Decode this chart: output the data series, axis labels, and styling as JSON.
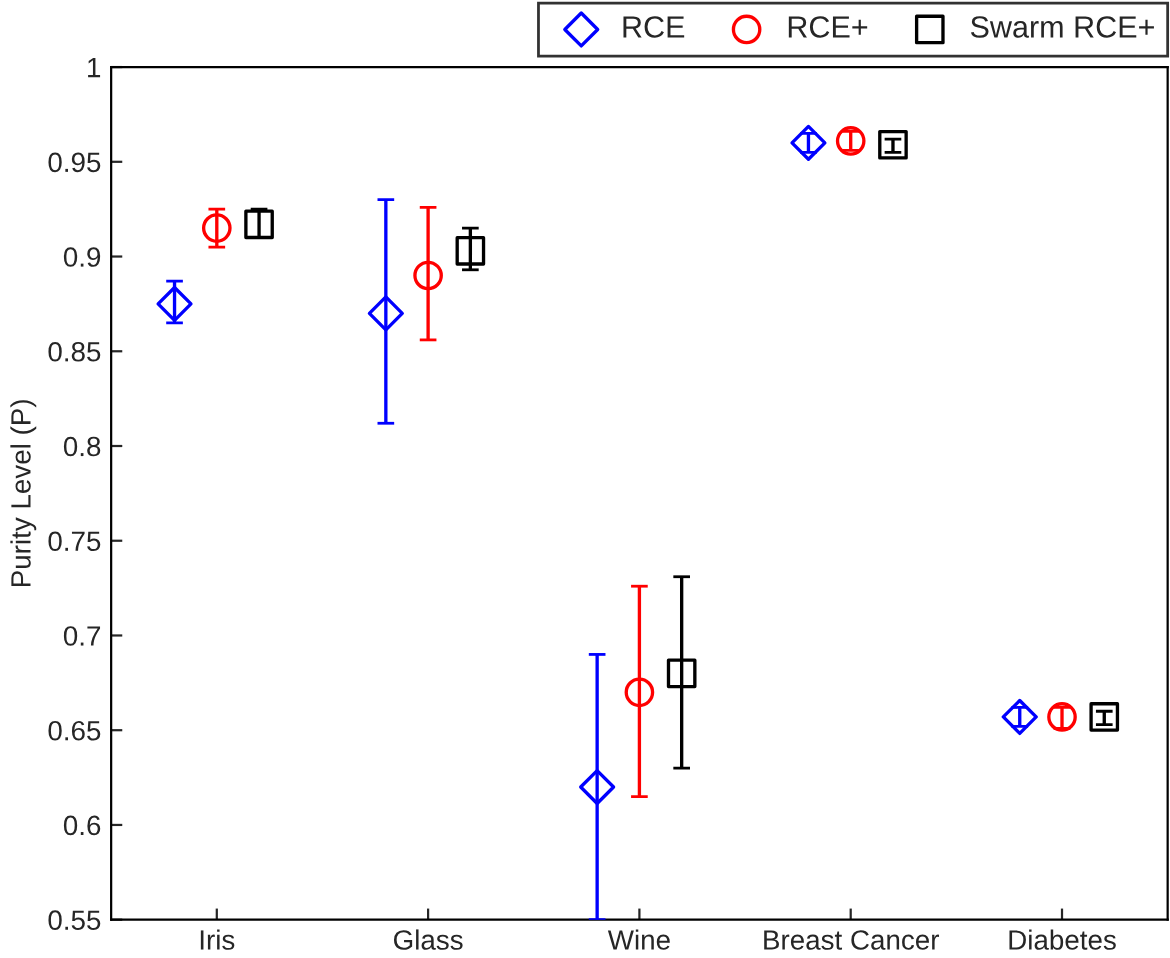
{
  "chart_data": {
    "type": "scatter",
    "ylabel": "Purity Level (P)",
    "categories": [
      "Iris",
      "Glass",
      "Wine",
      "Breast Cancer",
      "Diabetes"
    ],
    "series": [
      {
        "name": "RCE",
        "color": "#0000ff",
        "marker": "diamond",
        "values": [
          0.875,
          0.87,
          0.62,
          0.96,
          0.657
        ],
        "errors": [
          [
            0.865,
            0.887
          ],
          [
            0.812,
            0.93
          ],
          [
            0.55,
            0.69
          ],
          [
            0.955,
            0.965
          ],
          [
            0.652,
            0.662
          ]
        ]
      },
      {
        "name": "RCE+",
        "color": "#ff0000",
        "marker": "circle",
        "values": [
          0.915,
          0.89,
          0.67,
          0.961,
          0.657
        ],
        "errors": [
          [
            0.905,
            0.925
          ],
          [
            0.856,
            0.926
          ],
          [
            0.615,
            0.726
          ],
          [
            0.956,
            0.966
          ],
          [
            0.651,
            0.662
          ]
        ]
      },
      {
        "name": "Swarm RCE+",
        "color": "#000000",
        "marker": "square",
        "values": [
          0.917,
          0.903,
          0.68,
          0.959,
          0.657
        ],
        "errors": [
          [
            0.91,
            0.925
          ],
          [
            0.893,
            0.915
          ],
          [
            0.63,
            0.731
          ],
          [
            0.955,
            0.962
          ],
          [
            0.653,
            0.66
          ]
        ]
      }
    ],
    "ylim": [
      0.55,
      1
    ],
    "yticks": [
      0.55,
      0.6,
      0.65,
      0.7,
      0.75,
      0.8,
      0.85,
      0.9,
      0.95,
      1
    ],
    "legend": "top right",
    "grid": false
  }
}
